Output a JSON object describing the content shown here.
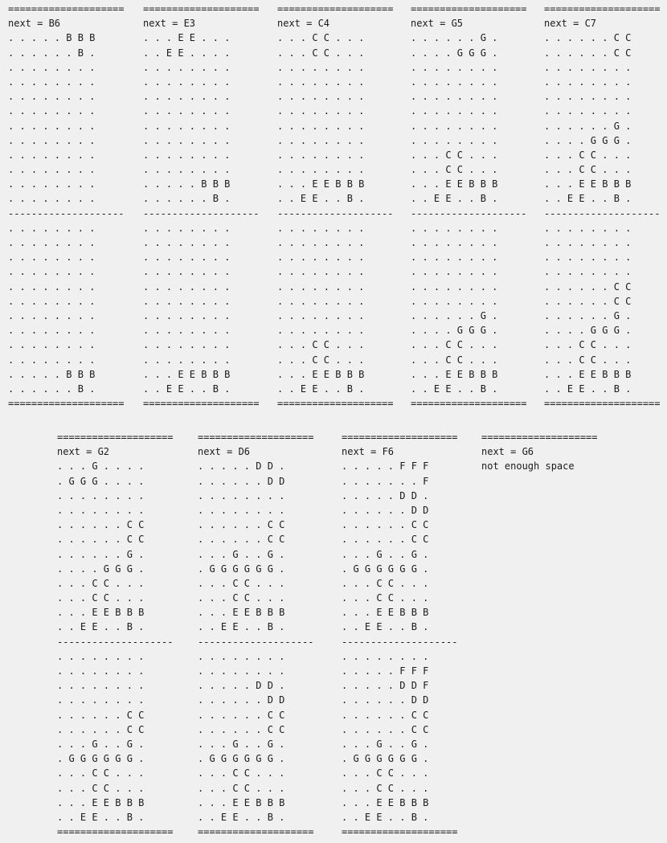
{
  "rule_eq": "====================",
  "rule_dash": "--------------------",
  "panels": [
    {
      "header": "next = B6",
      "top": [
        ". . . . . B B B",
        ". . . . . . B .",
        ". . . . . . . .",
        ". . . . . . . .",
        ". . . . . . . .",
        ". . . . . . . .",
        ". . . . . . . .",
        ". . . . . . . .",
        ". . . . . . . .",
        ". . . . . . . .",
        ". . . . . . . .",
        ". . . . . . . ."
      ],
      "bottom": [
        ". . . . . . . .",
        ". . . . . . . .",
        ". . . . . . . .",
        ". . . . . . . .",
        ". . . . . . . .",
        ". . . . . . . .",
        ". . . . . . . .",
        ". . . . . . . .",
        ". . . . . . . .",
        ". . . . . . . .",
        ". . . . . B B B",
        ". . . . . . B ."
      ]
    },
    {
      "header": "next = E3",
      "top": [
        ". . . E E . . .",
        ". . E E . . . .",
        ". . . . . . . .",
        ". . . . . . . .",
        ". . . . . . . .",
        ". . . . . . . .",
        ". . . . . . . .",
        ". . . . . . . .",
        ". . . . . . . .",
        ". . . . . . . .",
        ". . . . . B B B",
        ". . . . . . B ."
      ],
      "bottom": [
        ". . . . . . . .",
        ". . . . . . . .",
        ". . . . . . . .",
        ". . . . . . . .",
        ". . . . . . . .",
        ". . . . . . . .",
        ". . . . . . . .",
        ". . . . . . . .",
        ". . . . . . . .",
        ". . . . . . . .",
        ". . . E E B B B",
        ". . E E . . B ."
      ]
    },
    {
      "header": "next = C4",
      "top": [
        ". . . C C . . .",
        ". . . C C . . .",
        ". . . . . . . .",
        ". . . . . . . .",
        ". . . . . . . .",
        ". . . . . . . .",
        ". . . . . . . .",
        ". . . . . . . .",
        ". . . . . . . .",
        ". . . . . . . .",
        ". . . E E B B B",
        ". . E E . . B ."
      ],
      "bottom": [
        ". . . . . . . .",
        ". . . . . . . .",
        ". . . . . . . .",
        ". . . . . . . .",
        ". . . . . . . .",
        ". . . . . . . .",
        ". . . . . . . .",
        ". . . . . . . .",
        ". . . C C . . .",
        ". . . C C . . .",
        ". . . E E B B B",
        ". . E E . . B ."
      ]
    },
    {
      "header": "next = G5",
      "top": [
        ". . . . . . G .",
        ". . . . G G G .",
        ". . . . . . . .",
        ". . . . . . . .",
        ". . . . . . . .",
        ". . . . . . . .",
        ". . . . . . . .",
        ". . . . . . . .",
        ". . . C C . . .",
        ". . . C C . . .",
        ". . . E E B B B",
        ". . E E . . B ."
      ],
      "bottom": [
        ". . . . . . . .",
        ". . . . . . . .",
        ". . . . . . . .",
        ". . . . . . . .",
        ". . . . . . . .",
        ". . . . . . . .",
        ". . . . . . G .",
        ". . . . G G G .",
        ". . . C C . . .",
        ". . . C C . . .",
        ". . . E E B B B",
        ". . E E . . B ."
      ]
    },
    {
      "header": "next = C7",
      "top": [
        ". . . . . . C C",
        ". . . . . . C C",
        ". . . . . . . .",
        ". . . . . . . .",
        ". . . . . . . .",
        ". . . . . . . .",
        ". . . . . . G .",
        ". . . . G G G .",
        ". . . C C . . .",
        ". . . C C . . .",
        ". . . E E B B B",
        ". . E E . . B ."
      ],
      "bottom": [
        ". . . . . . . .",
        ". . . . . . . .",
        ". . . . . . . .",
        ". . . . . . . .",
        ". . . . . . C C",
        ". . . . . . C C",
        ". . . . . . G .",
        ". . . . G G G .",
        ". . . C C . . .",
        ". . . C C . . .",
        ". . . E E B B B",
        ". . E E . . B ."
      ]
    },
    {
      "header": "next = G2",
      "top": [
        ". . . G . . . .",
        ". G G G . . . .",
        ". . . . . . . .",
        ". . . . . . . .",
        ". . . . . . C C",
        ". . . . . . C C",
        ". . . . . . G .",
        ". . . . G G G .",
        ". . . C C . . .",
        ". . . C C . . .",
        ". . . E E B B B",
        ". . E E . . B ."
      ],
      "bottom": [
        ". . . . . . . .",
        ". . . . . . . .",
        ". . . . . . . .",
        ". . . . . . . .",
        ". . . . . . C C",
        ". . . . . . C C",
        ". . . G . . G .",
        ". G G G G G G .",
        ". . . C C . . .",
        ". . . C C . . .",
        ". . . E E B B B",
        ". . E E . . B ."
      ]
    },
    {
      "header": "next = D6",
      "top": [
        ". . . . . D D .",
        ". . . . . . D D",
        ". . . . . . . .",
        ". . . . . . . .",
        ". . . . . . C C",
        ". . . . . . C C",
        ". . . G . . G .",
        ". G G G G G G .",
        ". . . C C . . .",
        ". . . C C . . .",
        ". . . E E B B B",
        ". . E E . . B ."
      ],
      "bottom": [
        ". . . . . . . .",
        ". . . . . . . .",
        ". . . . . D D .",
        ". . . . . . D D",
        ". . . . . . C C",
        ". . . . . . C C",
        ". . . G . . G .",
        ". G G G G G G .",
        ". . . C C . . .",
        ". . . C C . . .",
        ". . . E E B B B",
        ". . E E . . B ."
      ]
    },
    {
      "header": "next = F6",
      "top": [
        ". . . . . F F F",
        ". . . . . . . F",
        ". . . . . D D .",
        ". . . . . . D D",
        ". . . . . . C C",
        ". . . . . . C C",
        ". . . G . . G .",
        ". G G G G G G .",
        ". . . C C . . .",
        ". . . C C . . .",
        ". . . E E B B B",
        ". . E E . . B ."
      ],
      "bottom": [
        ". . . . . . . .",
        ". . . . . F F F",
        ". . . . . D D F",
        ". . . . . . D D",
        ". . . . . . C C",
        ". . . . . . C C",
        ". . . G . . G .",
        ". G G G G G G .",
        ". . . C C . . .",
        ". . . C C . . .",
        ". . . E E B B B",
        ". . E E . . B ."
      ]
    }
  ],
  "final": {
    "header": "next = G6",
    "message": "not enough space"
  }
}
